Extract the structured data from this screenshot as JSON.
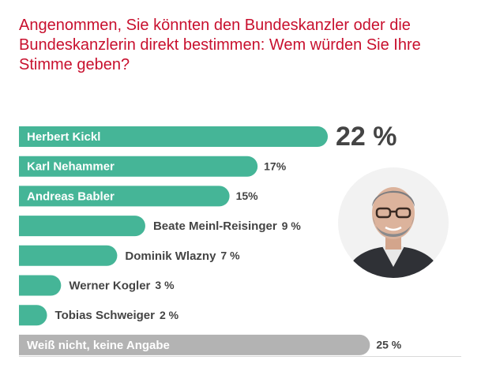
{
  "chart_data": {
    "type": "bar",
    "orientation": "horizontal",
    "title": "Angenommen, Sie könnten den Bundeskanzler oder die Bundeskanzlerin direkt bestimmen: Wem würden Sie Ihre Stimme geben?",
    "unit": "%",
    "categories": [
      "Herbert Kickl",
      "Karl Nehammer",
      "Andreas Babler",
      "Beate Meinl-Reisinger",
      "Dominik Wlazny",
      "Werner Kogler",
      "Tobias Schweiger",
      "Weiß nicht, keine Angabe"
    ],
    "values": [
      22,
      17,
      15,
      9,
      7,
      3,
      2,
      25
    ],
    "value_labels": [
      "22 %",
      "17%",
      "15%",
      "9 %",
      "7 %",
      "3 %",
      "2 %",
      "25 %"
    ],
    "colors": [
      "#45b597",
      "#45b597",
      "#45b597",
      "#45b597",
      "#45b597",
      "#45b597",
      "#45b597",
      "#b3b3b3"
    ],
    "label_inside": [
      true,
      true,
      true,
      false,
      false,
      false,
      false,
      true
    ],
    "xlim": [
      0,
      26.5
    ],
    "grid": false,
    "legend": "none"
  },
  "colors": {
    "title": "#c8102e",
    "bar_green": "#45b597",
    "bar_gray": "#b3b3b3",
    "value_text": "#444444"
  },
  "portrait_icon": "person-portrait-icon"
}
